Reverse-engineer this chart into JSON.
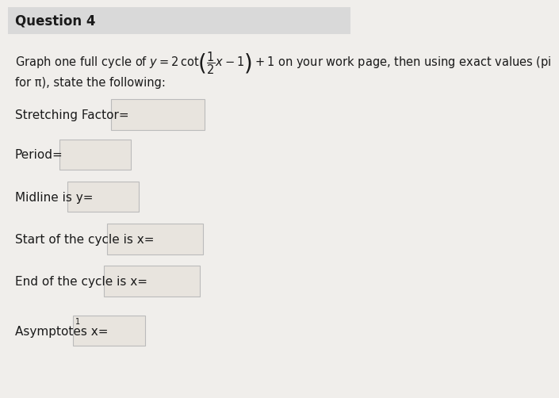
{
  "title": "Question 4",
  "title_bg_color": "#d9d9d9",
  "bg_color": "#f0eeeb",
  "main_text": "Graph one full cycle of y = 2 cot(",
  "fraction_num": "1",
  "fraction_den": "2",
  "main_text2": "x − 1) + 1 on your work page, then using exact values (pi",
  "line2_text": "for π), state the following:",
  "labels": [
    "Stretching Factor=",
    "Period=",
    "Midline is y=",
    "Start of the cycle is x=",
    "End of the cycle is x=",
    "Asymptotes x="
  ],
  "box_color": "#e8e4de",
  "box_edge_color": "#bbbbbb",
  "text_color": "#1a1a1a",
  "font_size": 11,
  "title_font_size": 12
}
